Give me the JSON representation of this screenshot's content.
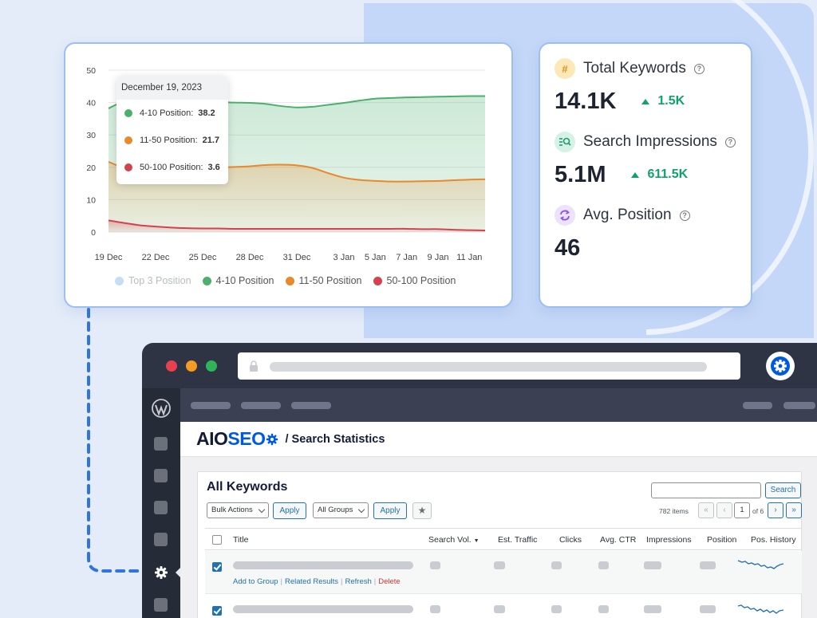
{
  "chart": {
    "y_ticks": [
      "50",
      "40",
      "30",
      "20",
      "10",
      "0"
    ],
    "x_ticks": [
      "19 Dec",
      "22 Dec",
      "25 Dec",
      "28 Dec",
      "31 Dec",
      "3 Jan",
      "5 Jan",
      "7 Jan",
      "9 Jan",
      "11 Jan"
    ],
    "tooltip": {
      "date": "December 19, 2023",
      "rows": [
        {
          "label": "4-10 Position:",
          "value": "38.2",
          "color": "#4caf6e"
        },
        {
          "label": "11-50 Position:",
          "value": "21.7",
          "color": "#e8892b"
        },
        {
          "label": "50-100 Position:",
          "value": "3.6",
          "color": "#d4414f"
        }
      ]
    },
    "legend": [
      {
        "label": "Top 3 Position",
        "color": "#c7ddf4"
      },
      {
        "label": "4-10 Position",
        "color": "#4caf6e"
      },
      {
        "label": "11-50 Position",
        "color": "#e8892b"
      },
      {
        "label": "50-100 Position",
        "color": "#d4414f"
      }
    ]
  },
  "chart_data": {
    "type": "area",
    "x": [
      "19 Dec",
      "20 Dec",
      "21 Dec",
      "22 Dec",
      "23 Dec",
      "24 Dec",
      "25 Dec",
      "26 Dec",
      "27 Dec",
      "28 Dec",
      "29 Dec",
      "30 Dec",
      "31 Dec",
      "1 Jan",
      "2 Jan",
      "3 Jan",
      "4 Jan",
      "5 Jan",
      "6 Jan",
      "7 Jan",
      "8 Jan",
      "9 Jan",
      "10 Jan",
      "11 Jan",
      "12 Jan"
    ],
    "series": [
      {
        "name": "4-10 Position",
        "color": "#4caf6e",
        "values": [
          38.2,
          40.4,
          41.3,
          41.7,
          41.5,
          40.9,
          40.4,
          40.2,
          40.0,
          39.9,
          39.6,
          38.9,
          38.5,
          38.7,
          39.3,
          39.9,
          40.6,
          41.2,
          41.4,
          41.6,
          41.7,
          41.8,
          41.9,
          42.0,
          42.0
        ]
      },
      {
        "name": "11-50 Position",
        "color": "#e8892b",
        "values": [
          21.7,
          19.8,
          19.1,
          19.0,
          19.2,
          19.5,
          19.7,
          19.9,
          20.1,
          20.3,
          20.7,
          20.8,
          20.6,
          19.8,
          18.2,
          16.8,
          16.1,
          15.8,
          15.6,
          15.6,
          15.7,
          15.8,
          16.0,
          16.2,
          16.3
        ]
      },
      {
        "name": "50-100 Position",
        "color": "#d4414f",
        "values": [
          3.6,
          2.8,
          2.1,
          1.7,
          1.4,
          1.2,
          1.1,
          1.1,
          1.0,
          1.0,
          1.0,
          1.0,
          1.0,
          1.0,
          1.0,
          1.0,
          1.0,
          1.0,
          1.0,
          1.0,
          0.9,
          0.9,
          0.7,
          0.6,
          0.5
        ]
      }
    ],
    "ylim": [
      0,
      50
    ],
    "legend": [
      "Top 3 Position",
      "4-10 Position",
      "11-50 Position",
      "50-100 Position"
    ],
    "legend_position": "bottom",
    "grid": true
  },
  "stats": [
    {
      "label": "Total Keywords",
      "value": "14.1K",
      "delta": "1.5K",
      "icon": "hash-icon",
      "icon_bg": "#fde9b8",
      "icon_color": "#d9951c"
    },
    {
      "label": "Search Impressions",
      "value": "5.1M",
      "delta": "611.5K",
      "icon": "search-list-icon",
      "icon_bg": "#d6f1e6",
      "icon_color": "#1e9c6d"
    },
    {
      "label": "Avg. Position",
      "value": "46",
      "delta": "",
      "icon": "refresh-position-icon",
      "icon_bg": "#ece2fb",
      "icon_color": "#8b4ff0"
    }
  ],
  "app": {
    "brand_aio": "AIO",
    "brand_seo": "SEO",
    "page_title": "/ Search Statistics",
    "panel_title": "All Keywords",
    "search_button": "Search",
    "bulk_actions": "Bulk Actions",
    "all_groups": "All Groups",
    "apply": "Apply",
    "items_count": "782 items",
    "current_page": "1",
    "of_pages": "of 6",
    "columns": [
      "Title",
      "Search Vol.",
      "Est. Traffic",
      "Clicks",
      "Avg. CTR",
      "Impressions",
      "Position",
      "Pos. History"
    ],
    "row_actions": [
      "Add to Group",
      "Related Results",
      "Refresh",
      "Delete"
    ]
  },
  "colors": {
    "accent": "#005ae0",
    "wp_blue": "#2271b1",
    "green": "#0ea36b"
  }
}
